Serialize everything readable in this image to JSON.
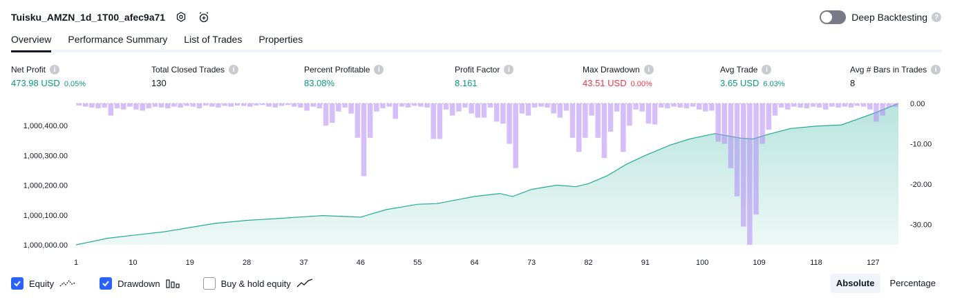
{
  "header": {
    "title": "Tuisku_AMZN_1d_1T00_afec9a71",
    "settings_icon": "settings-icon",
    "alert_icon": "alarm-add-icon"
  },
  "deep_backtesting": {
    "label": "Deep Backtesting",
    "enabled": false,
    "help_icon": "question-icon"
  },
  "tabs": [
    {
      "label": "Overview",
      "active": true
    },
    {
      "label": "Performance Summary",
      "active": false
    },
    {
      "label": "List of Trades",
      "active": false
    },
    {
      "label": "Properties",
      "active": false
    }
  ],
  "metrics": [
    {
      "label": "Net Profit",
      "value": "473.98 USD",
      "pct": "0.05%",
      "tone": "pos"
    },
    {
      "label": "Total Closed Trades",
      "value": "130",
      "pct": "",
      "tone": "neu"
    },
    {
      "label": "Percent Profitable",
      "value": "83.08%",
      "pct": "",
      "tone": "pos"
    },
    {
      "label": "Profit Factor",
      "value": "8.161",
      "pct": "",
      "tone": "pos"
    },
    {
      "label": "Max Drawdown",
      "value": "43.51 USD",
      "pct": "0.00%",
      "tone": "neg"
    },
    {
      "label": "Avg Trade",
      "value": "3.65 USD",
      "pct": "6.03%",
      "tone": "pos"
    },
    {
      "label": "Avg # Bars in Trades",
      "value": "8",
      "pct": "",
      "tone": "neu"
    }
  ],
  "chart_data": {
    "type": "area",
    "x_ticks": [
      "1",
      "10",
      "19",
      "28",
      "37",
      "46",
      "55",
      "64",
      "73",
      "82",
      "91",
      "100",
      "109",
      "118",
      "127"
    ],
    "xlim": [
      1,
      131
    ],
    "left_axis": {
      "ticks": [
        "1,000,000.00",
        "1,000,100.00",
        "1,000,200.00",
        "1,000,300.00",
        "1,000,400.00"
      ],
      "ylim": [
        1000000,
        1000474
      ]
    },
    "right_axis": {
      "ticks": [
        "0.00",
        "-10.00",
        "-20.00",
        "-30.00"
      ],
      "ylim": [
        -35,
        0
      ]
    },
    "series": [
      {
        "name": "Equity",
        "color": "#22ab94",
        "x": [
          1,
          6,
          10,
          15,
          19,
          23,
          28,
          32,
          37,
          40,
          46,
          50,
          55,
          58,
          64,
          68,
          70,
          73,
          77,
          80,
          82,
          85,
          88,
          91,
          95,
          98,
          102,
          106,
          108,
          110,
          114,
          118,
          122,
          127,
          131
        ],
        "y": [
          1000000,
          1000022,
          1000032,
          1000044,
          1000058,
          1000072,
          1000082,
          1000087,
          1000094,
          1000098,
          1000093,
          1000118,
          1000136,
          1000138,
          1000162,
          1000172,
          1000162,
          1000186,
          1000200,
          1000195,
          1000205,
          1000232,
          1000270,
          1000300,
          1000335,
          1000355,
          1000373,
          1000358,
          1000355,
          1000368,
          1000390,
          1000398,
          1000402,
          1000440,
          1000474
        ]
      },
      {
        "name": "Drawdown",
        "color": "#d1b3f7",
        "x": [
          1,
          2,
          3,
          4,
          5,
          6,
          7,
          8,
          9,
          10,
          11,
          12,
          13,
          14,
          15,
          16,
          17,
          18,
          19,
          20,
          21,
          22,
          23,
          24,
          25,
          26,
          27,
          28,
          29,
          30,
          31,
          32,
          33,
          34,
          35,
          36,
          37,
          38,
          39,
          40,
          41,
          42,
          43,
          44,
          45,
          46,
          47,
          48,
          49,
          50,
          51,
          52,
          53,
          54,
          55,
          56,
          57,
          58,
          59,
          60,
          61,
          62,
          63,
          64,
          65,
          66,
          67,
          68,
          69,
          70,
          71,
          72,
          73,
          74,
          75,
          76,
          77,
          78,
          79,
          80,
          81,
          82,
          83,
          84,
          85,
          86,
          87,
          88,
          89,
          90,
          91,
          92,
          93,
          94,
          95,
          96,
          97,
          98,
          99,
          100,
          101,
          102,
          103,
          104,
          105,
          106,
          107,
          108,
          109,
          110,
          111,
          112,
          113,
          114,
          115,
          116,
          117,
          118,
          119,
          120,
          121,
          122,
          123,
          124,
          125,
          126,
          127,
          128,
          129,
          130
        ],
        "y": [
          -0.5,
          -0.8,
          -1.0,
          -1.2,
          -1.0,
          -3.0,
          -1.2,
          -1.5,
          -0.8,
          -1.5,
          -1.8,
          -1.2,
          -0.8,
          -1.0,
          -1.2,
          -0.8,
          -1.0,
          -0.6,
          -0.8,
          -1.2,
          -0.5,
          -0.8,
          -1.0,
          -0.6,
          -0.8,
          -0.5,
          -0.6,
          -0.8,
          -0.5,
          -0.4,
          -0.8,
          -1.0,
          -0.6,
          -0.4,
          -0.8,
          -1.0,
          -1.8,
          -0.8,
          -1.2,
          -5.5,
          -4.8,
          -2.0,
          -1.0,
          -2.5,
          -8.5,
          -18.0,
          -8.5,
          -2.0,
          -1.2,
          -0.8,
          -3.8,
          -0.8,
          -1.0,
          -0.6,
          -0.8,
          -1.0,
          -8.8,
          -8.8,
          -1.5,
          -3.0,
          -2.0,
          -1.0,
          -2.5,
          -3.5,
          -3.5,
          -1.0,
          -4.5,
          -5.0,
          -10.0,
          -16.0,
          -2.5,
          -3.0,
          -1.0,
          -0.8,
          -1.0,
          -2.5,
          -3.5,
          -1.8,
          -8.5,
          -12.0,
          -8.5,
          -3.0,
          -8.5,
          -13.5,
          -7.0,
          -2.0,
          -12.0,
          -5.5,
          -1.5,
          -2.0,
          -5.0,
          -5.2,
          -1.0,
          -1.2,
          -0.8,
          -1.0,
          -1.2,
          -0.8,
          -1.5,
          -2.0,
          -1.8,
          -9.5,
          -10.0,
          -16.0,
          -23.0,
          -30.5,
          -35.0,
          -27.5,
          -10.0,
          -6.5,
          -3.0,
          -1.0,
          -1.5,
          -0.8,
          -1.0,
          -1.2,
          -0.8,
          -1.0,
          -1.5,
          -0.8,
          -1.0,
          -0.8,
          -1.0,
          -0.6,
          -0.8,
          -1.5,
          -4.5,
          -3.0,
          -1.0,
          -0.8
        ]
      }
    ],
    "legend": [
      {
        "label": "Equity",
        "checked": true,
        "icon": "equity-line-icon"
      },
      {
        "label": "Drawdown",
        "checked": true,
        "icon": "drawdown-bars-icon"
      },
      {
        "label": "Buy & hold equity",
        "checked": false,
        "icon": "buy-hold-line-icon"
      }
    ]
  },
  "view_mode": {
    "options": [
      {
        "label": "Absolute",
        "active": true
      },
      {
        "label": "Percentage",
        "active": false
      }
    ]
  }
}
